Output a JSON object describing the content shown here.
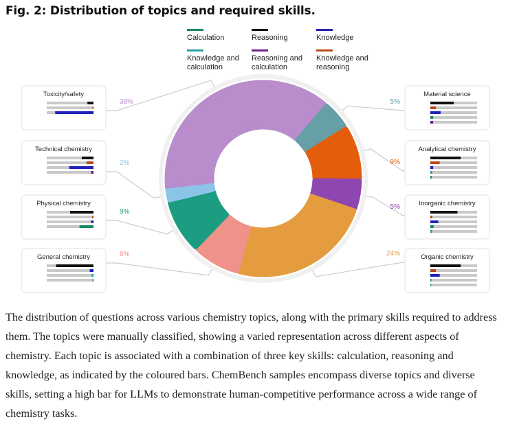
{
  "figure": {
    "title": "Fig. 2: Distribution of topics and required skills.",
    "caption": "The distribution of questions across various chemistry topics, along with the primary skills required to address them. The topics were manually classified, showing a varied representation across different aspects of chemistry. Each topic is associated with a combination of three key skills: calculation, reasoning and knowledge, as indicated by the coloured bars. ChemBench samples encompass diverse topics and diverse skills, setting a high bar for LLMs to demonstrate human-competitive performance across a wide range of chemistry tasks."
  },
  "chart_data": {
    "type": "pie",
    "variant": "donut",
    "legend": [
      {
        "key": "calculation",
        "label": [
          "Calculation"
        ],
        "color": "#1a8a5f"
      },
      {
        "key": "reasoning",
        "label": [
          "Reasoning"
        ],
        "color": "#111111"
      },
      {
        "key": "knowledge",
        "label": [
          "Knowledge"
        ],
        "color": "#2222bb"
      },
      {
        "key": "knowledge_calculation",
        "label": [
          "Knowledge and",
          "calculation"
        ],
        "color": "#2aa0a4"
      },
      {
        "key": "reasoning_calculation",
        "label": [
          "Reasoning and",
          "calculation"
        ],
        "color": "#6a2090"
      },
      {
        "key": "knowledge_reasoning",
        "label": [
          "Knowledge and",
          "reasoning"
        ],
        "color": "#b84a1a"
      }
    ],
    "slices": [
      {
        "topic": "Toxicity/safety",
        "percent": 38,
        "label": "38%",
        "color": "#b98ccc"
      },
      {
        "topic": "Material science",
        "percent": 5,
        "label": "5%",
        "color": "#679fa6"
      },
      {
        "topic": "Analytical chemistry",
        "percent": 9,
        "label": "9%",
        "color": "#e35d0d"
      },
      {
        "topic": "Inorganic chemistry",
        "percent": 5,
        "label": "5%",
        "color": "#8e46b0"
      },
      {
        "topic": "Organic chemistry",
        "percent": 24,
        "label": "24%",
        "color": "#e59c3f"
      },
      {
        "topic": "General chemistry",
        "percent": 8,
        "label": "8%",
        "color": "#ef928a"
      },
      {
        "topic": "Physical chemistry",
        "percent": 9,
        "label": "9%",
        "color": "#1c9c80"
      },
      {
        "topic": "Technical chemistry",
        "percent": 2,
        "label": "2%",
        "color": "#8cc4e8"
      }
    ],
    "skill_bars": {
      "Toxicity/safety": [
        {
          "skill": "reasoning",
          "fraction": 0.13
        },
        {
          "skill": "knowledge_reasoning",
          "fraction": 0.02
        },
        {
          "skill": "knowledge",
          "fraction": 0.82
        }
      ],
      "Technical chemistry": [
        {
          "skill": "reasoning",
          "fraction": 0.25
        },
        {
          "skill": "knowledge_reasoning",
          "fraction": 0.15
        },
        {
          "skill": "knowledge",
          "fraction": 0.52
        },
        {
          "skill": "reasoning_calculation",
          "fraction": 0.05
        }
      ],
      "Physical chemistry": [
        {
          "skill": "reasoning",
          "fraction": 0.5
        },
        {
          "skill": "knowledge_reasoning",
          "fraction": 0.03
        },
        {
          "skill": "knowledge",
          "fraction": 0.05
        },
        {
          "skill": "calculation",
          "fraction": 0.3
        }
      ],
      "General chemistry": [
        {
          "skill": "reasoning",
          "fraction": 0.8
        },
        {
          "skill": "knowledge",
          "fraction": 0.08
        },
        {
          "skill": "knowledge_calculation",
          "fraction": 0.04
        },
        {
          "skill": "calculation",
          "fraction": 0.02
        }
      ],
      "Material science": [
        {
          "skill": "reasoning",
          "fraction": 0.5
        },
        {
          "skill": "knowledge_reasoning",
          "fraction": 0.12
        },
        {
          "skill": "knowledge",
          "fraction": 0.22
        },
        {
          "skill": "calculation",
          "fraction": 0.06
        },
        {
          "skill": "reasoning_calculation",
          "fraction": 0.06
        }
      ],
      "Analytical chemistry": [
        {
          "skill": "reasoning",
          "fraction": 0.65
        },
        {
          "skill": "knowledge_reasoning",
          "fraction": 0.2
        },
        {
          "skill": "knowledge",
          "fraction": 0.06
        },
        {
          "skill": "knowledge_calculation",
          "fraction": 0.04
        },
        {
          "skill": "calculation",
          "fraction": 0.03
        }
      ],
      "Inorganic chemistry": [
        {
          "skill": "reasoning",
          "fraction": 0.58
        },
        {
          "skill": "knowledge_reasoning",
          "fraction": 0.04
        },
        {
          "skill": "knowledge",
          "fraction": 0.17
        },
        {
          "skill": "calculation",
          "fraction": 0.07
        },
        {
          "skill": "knowledge_calculation",
          "fraction": 0.04
        }
      ],
      "Organic chemistry": [
        {
          "skill": "reasoning",
          "fraction": 0.65
        },
        {
          "skill": "knowledge_reasoning",
          "fraction": 0.12
        },
        {
          "skill": "knowledge",
          "fraction": 0.2
        },
        {
          "skill": "calculation",
          "fraction": 0.02
        },
        {
          "skill": "knowledge_calculation",
          "fraction": 0.02
        }
      ]
    },
    "bar_track_color": "#c9c9c9",
    "connector_color": "#cccccc"
  }
}
